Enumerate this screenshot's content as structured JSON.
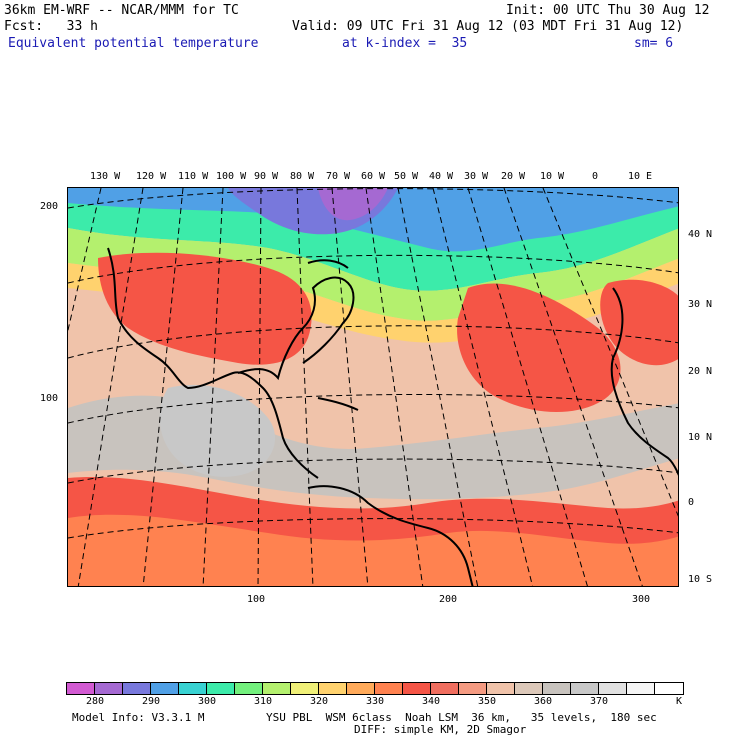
{
  "header": {
    "model_title": "36km EM-WRF -- NCAR/MMM for TC",
    "init_time": "Init: 00 UTC Thu 30 Aug 12",
    "forecast_hour": "Fcst:   33 h",
    "valid_time": "Valid: 09 UTC Fri 31 Aug 12 (03 MDT Fri 31 Aug 12)",
    "field_name": "Equivalent potential temperature",
    "level": "at k-index =  35",
    "smoothing": "sm= 6"
  },
  "map": {
    "longitude_labels": [
      "130 W",
      "120 W",
      "110 W",
      "100 W",
      "90 W",
      "80 W",
      "70 W",
      "60 W",
      "50 W",
      "40 W",
      "30 W",
      "20 W",
      "10 W",
      "0",
      "10 E"
    ],
    "latitude_labels": [
      "40 N",
      "30 N",
      "20 N",
      "10 N",
      "0",
      "10 S"
    ],
    "y_grid_labels": [
      "200",
      "100"
    ],
    "x_grid_labels": [
      "100",
      "200",
      "300"
    ]
  },
  "colorbar": {
    "colors": [
      "#d25ad2",
      "#a569d2",
      "#7878dc",
      "#50a0e6",
      "#38d2d2",
      "#3cebaa",
      "#73f07d",
      "#b4f06e",
      "#f0f078",
      "#ffd26e",
      "#ffaa5a",
      "#ff8250",
      "#f55546",
      "#f06e5f",
      "#f59b82",
      "#f0c3aa",
      "#dcc8b9",
      "#c8c3be",
      "#c8c8c8",
      "#e1e1e1",
      "#f5f5f5",
      "#ffffff"
    ],
    "labels": [
      "280",
      "290",
      "300",
      "310",
      "320",
      "330",
      "340",
      "350",
      "360",
      "370"
    ],
    "unit": "K"
  },
  "footer": {
    "model_info": "Model Info: V3.3.1 M",
    "physics": "YSU PBL  WSM 6class  Noah LSM  36 km,   35 levels,  180 sec",
    "diffusion": "DIFF: simple KM, 2D Smagor"
  }
}
